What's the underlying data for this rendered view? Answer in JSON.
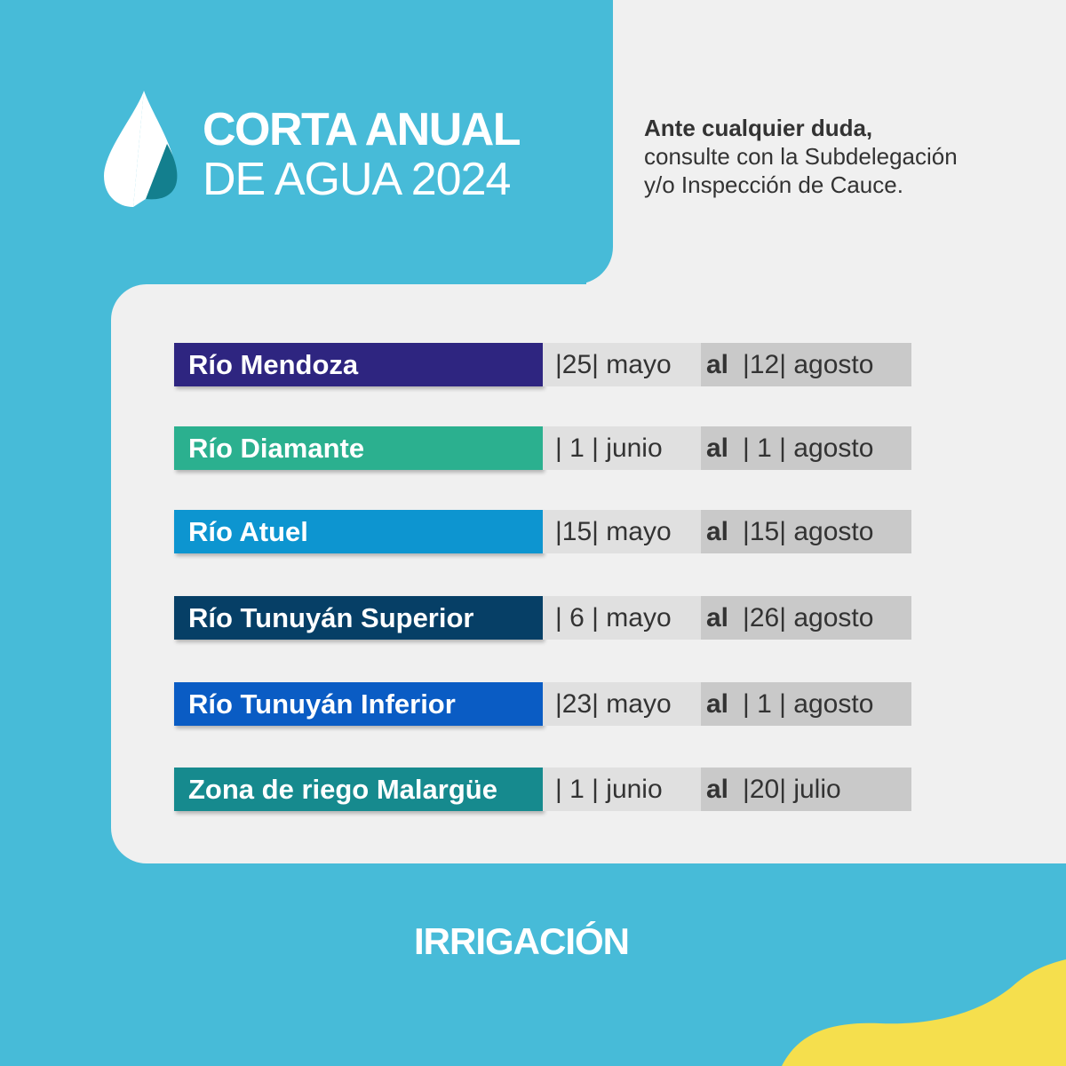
{
  "header": {
    "title_line1": "CORTA ANUAL",
    "title_line2": "DE AGUA 2024",
    "note_bold": "Ante cualquier duda,",
    "note_line2": "consulte con la Subdelegación",
    "note_line3": "y/o Inspección de Cauce."
  },
  "schedule": [
    {
      "name": "Río Mendoza",
      "color": "#2e2580",
      "from": "|25| mayo",
      "al": "al",
      "to": "|12| agosto"
    },
    {
      "name": "Río Diamante",
      "color": "#2bb08f",
      "from": "| 1 | junio",
      "al": "al",
      "to": "| 1 | agosto"
    },
    {
      "name": "Río Atuel",
      "color": "#0d95d0",
      "from": "|15| mayo",
      "al": "al",
      "to": "|15| agosto"
    },
    {
      "name": "Río Tunuyán Superior",
      "color": "#063f66",
      "from": "| 6 | mayo",
      "al": "al",
      "to": "|26| agosto"
    },
    {
      "name": "Río Tunuyán Inferior",
      "color": "#0a5cc4",
      "from": "|23| mayo",
      "al": "al",
      "to": "| 1 | agosto"
    },
    {
      "name": "Zona de riego Malargüe",
      "color": "#168a8e",
      "from": "| 1 | junio",
      "al": "al",
      "to": "|20| julio"
    }
  ],
  "footer": {
    "logo": "IRRIGACIÓN"
  },
  "colors": {
    "background": "#47bbd8",
    "card": "#f0f0f0",
    "accent_yellow": "#f5df4d"
  }
}
